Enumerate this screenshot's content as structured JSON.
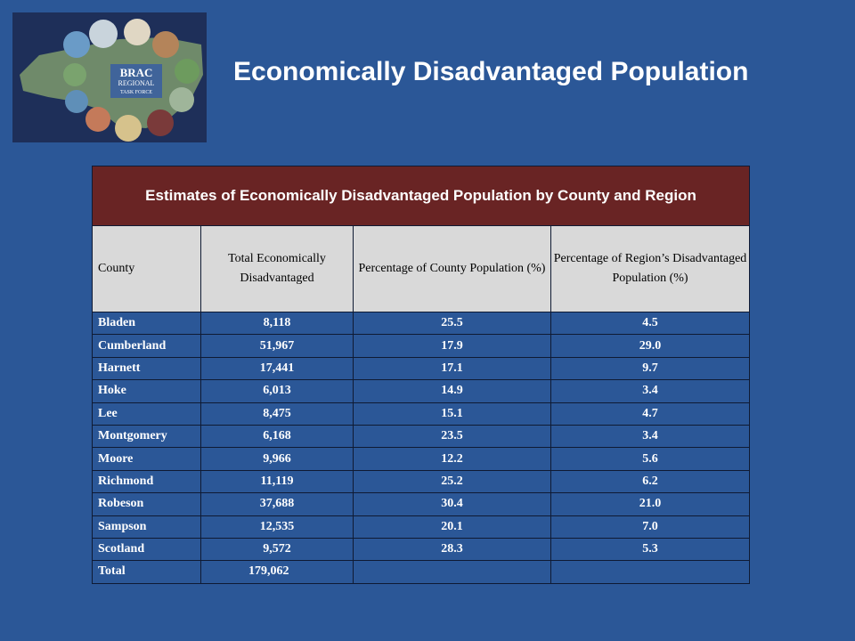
{
  "slide": {
    "title": "Economically Disadvantaged Population"
  },
  "logo": {
    "line1": "BRAC",
    "line2": "REGIONAL",
    "line3": "TASK FORCE"
  },
  "table": {
    "caption": "Estimates of Economically Disadvantaged Population by County and Region",
    "headers": {
      "county": "County",
      "total": "Total Economically Disadvantaged",
      "pct_county": "Percentage of County Population (%)",
      "pct_region": "Percentage of Region’s Disadvantaged Population (%)"
    },
    "rows": [
      {
        "county": "Bladen",
        "total": "8,118",
        "pct_county": "25.5",
        "pct_region": "4.5"
      },
      {
        "county": "Cumberland",
        "total": "51,967",
        "pct_county": "17.9",
        "pct_region": "29.0"
      },
      {
        "county": "Harnett",
        "total": "17,441",
        "pct_county": "17.1",
        "pct_region": "9.7"
      },
      {
        "county": "Hoke",
        "total": "6,013",
        "pct_county": "14.9",
        "pct_region": "3.4"
      },
      {
        "county": "Lee",
        "total": "8,475",
        "pct_county": "15.1",
        "pct_region": "4.7"
      },
      {
        "county": "Montgomery",
        "total": "6,168",
        "pct_county": "23.5",
        "pct_region": "3.4"
      },
      {
        "county": "Moore",
        "total": "9,966",
        "pct_county": "12.2",
        "pct_region": "5.6"
      },
      {
        "county": "Richmond",
        "total": "11,119",
        "pct_county": "25.2",
        "pct_region": "6.2"
      },
      {
        "county": "Robeson",
        "total": "37,688",
        "pct_county": "30.4",
        "pct_region": "21.0"
      },
      {
        "county": "Sampson",
        "total": "12,535",
        "pct_county": "20.1",
        "pct_region": "7.0"
      },
      {
        "county": "Scotland",
        "total": "9,572",
        "pct_county": "28.3",
        "pct_region": "5.3"
      }
    ],
    "total_row": {
      "county": "Total",
      "total": "179,062",
      "pct_county": "",
      "pct_region": ""
    }
  }
}
